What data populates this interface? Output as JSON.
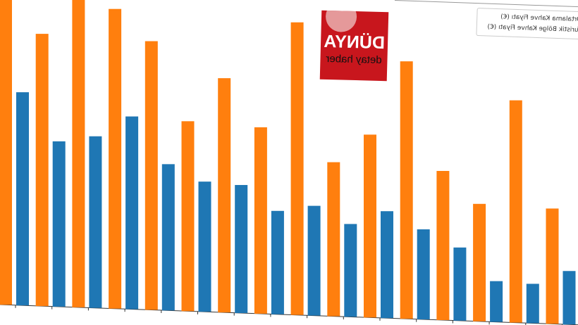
{
  "chart_data": {
    "type": "bar",
    "title": "",
    "xlabel": "",
    "ylabel": "",
    "categories": [
      "",
      "",
      "",
      "",
      "",
      "",
      "",
      "",
      "",
      "",
      "",
      "",
      "",
      "",
      "",
      ""
    ],
    "series": [
      {
        "name": "Turistik Bölge Kahve Fiyatı (€)",
        "color": "#ff7f0e",
        "values": [
          4.5,
          3.87,
          4.4,
          4.26,
          3.82,
          2.7,
          3.33,
          2.65,
          4.16,
          2.19,
          2.6,
          3.66,
          2.12,
          1.67,
          3.16,
          1.64
        ]
      },
      {
        "name": "Ortalama Kahve Fiyatı (€)",
        "color": "#1f77b4",
        "values": [
          3.03,
          2.35,
          2.44,
          2.74,
          2.08,
          1.85,
          1.82,
          1.47,
          1.56,
          1.32,
          1.52,
          1.28,
          1.04,
          0.58,
          0.56,
          0.76
        ]
      }
    ],
    "grid": false,
    "legend": "top-right",
    "mirrored": true
  },
  "legend": {
    "item1": "Ortalama Kahve Fiyatı (€)",
    "item2": "Turistik Bölge Kahve Fiyatı (€)"
  },
  "logo": {
    "line1": "DÜNYA",
    "line2": "detay haber"
  }
}
